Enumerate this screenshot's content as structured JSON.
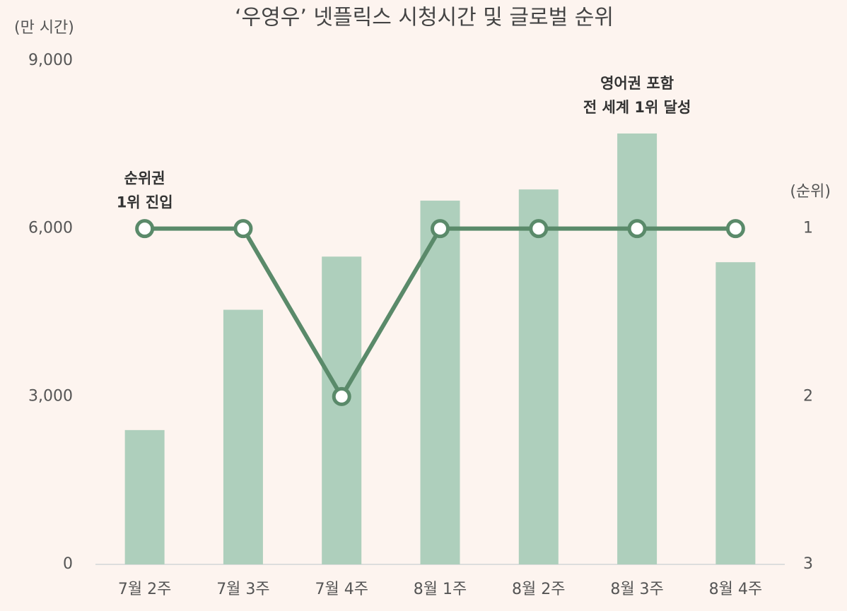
{
  "chart_data": {
    "type": "bar_line",
    "title": "‘우영우’ 넷플릭스 시청시간 및 글로벌 순위",
    "y_label": "(만 시간)",
    "y2_label": "(순위)",
    "categories": [
      "7월 2주",
      "7월 3주",
      "7월 4주",
      "8월 1주",
      "8월 2주",
      "8월 3주",
      "8월 4주"
    ],
    "series": [
      {
        "name": "시청시간",
        "type": "bar",
        "color": "#aecfbc",
        "values": [
          2400,
          4550,
          5500,
          6500,
          6700,
          7700,
          5400
        ]
      },
      {
        "name": "순위",
        "type": "line",
        "axis": "y2",
        "color": "#5a8a6a",
        "values": [
          1,
          1,
          2,
          1,
          1,
          1,
          1
        ]
      }
    ],
    "ylim": [
      0,
      9000
    ],
    "yticks": [
      0,
      {
        "value": 3000,
        "label": "3,000"
      },
      {
        "value": 6000,
        "label": "6,000"
      },
      {
        "value": 9000,
        "label": "9,000"
      }
    ],
    "y2lim": [
      3,
      0
    ],
    "y2ticks": [
      1,
      2,
      3
    ],
    "annotations": [
      {
        "index": 0,
        "lines": [
          "순위권",
          "1위 진입"
        ]
      },
      {
        "index": 5,
        "lines": [
          "영어권 포함",
          "전 세계 1위 달성"
        ]
      }
    ]
  }
}
